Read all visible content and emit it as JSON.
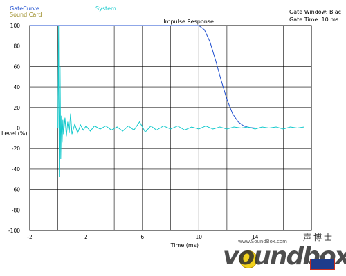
{
  "legend": [
    {
      "label": "GateCurve",
      "color": "#1f4fd0"
    },
    {
      "label": "System",
      "color": "#11c9cc"
    },
    {
      "label": "Sound Card",
      "color": "#9a8a20"
    }
  ],
  "info": {
    "gate_window": "Gate Window: Blac",
    "gate_time": "Gate Time: 10 ms"
  },
  "watermark": {
    "brand": "voundbox",
    "url": "www.SoundBox.com",
    "cn": "声博士"
  },
  "chart_data": {
    "type": "line",
    "title": "Impulse Response",
    "xlabel": "Time (ms)",
    "ylabel": "Level (%)",
    "xlim": [
      -2,
      18
    ],
    "ylim": [
      -100,
      100
    ],
    "xticks": [
      -2,
      2,
      6,
      10,
      14
    ],
    "yticks": [
      100,
      80,
      60,
      40,
      20,
      0,
      -20,
      -40,
      -60,
      -80,
      -100
    ],
    "grid": true,
    "series": [
      {
        "name": "GateCurve",
        "color": "#1f4fd0",
        "x": [
          -2,
          10,
          10.4,
          10.8,
          11.2,
          11.6,
          12,
          12.4,
          12.8,
          13.2,
          13.6,
          14,
          18
        ],
        "y": [
          100,
          100,
          96,
          84,
          66,
          46,
          28,
          14,
          6,
          2,
          0.5,
          0,
          0
        ]
      },
      {
        "name": "System",
        "color": "#11c9cc",
        "x": [
          -2,
          -0.2,
          0,
          0.05,
          0.1,
          0.15,
          0.2,
          0.25,
          0.3,
          0.35,
          0.4,
          0.5,
          0.6,
          0.7,
          0.8,
          0.9,
          1.0,
          1.2,
          1.4,
          1.6,
          1.8,
          2.0,
          2.3,
          2.6,
          3.0,
          3.4,
          3.8,
          4.2,
          4.6,
          5.0,
          5.4,
          5.8,
          6.2,
          6.6,
          7.0,
          7.5,
          8.0,
          8.5,
          9.0,
          9.5,
          10.0,
          10.5,
          11.0,
          11.5,
          12.0,
          12.5,
          13.0,
          13.5,
          14.0,
          14.5,
          15.0,
          15.5,
          16.0,
          16.5,
          17.0,
          17.5
        ],
        "y": [
          0,
          0,
          0,
          100,
          -48,
          60,
          -30,
          12,
          -14,
          8,
          -6,
          10,
          -8,
          6,
          -5,
          14,
          -6,
          4,
          -5,
          3,
          -2,
          2,
          -3,
          2,
          -1,
          2,
          -2,
          1,
          -3,
          2,
          -2,
          6,
          -4,
          2,
          -2,
          2,
          -1,
          2,
          -2,
          1,
          -1,
          2,
          -1,
          1,
          -1,
          1,
          0,
          1,
          -1,
          1,
          0,
          1,
          -1,
          1,
          0,
          1
        ]
      }
    ]
  }
}
